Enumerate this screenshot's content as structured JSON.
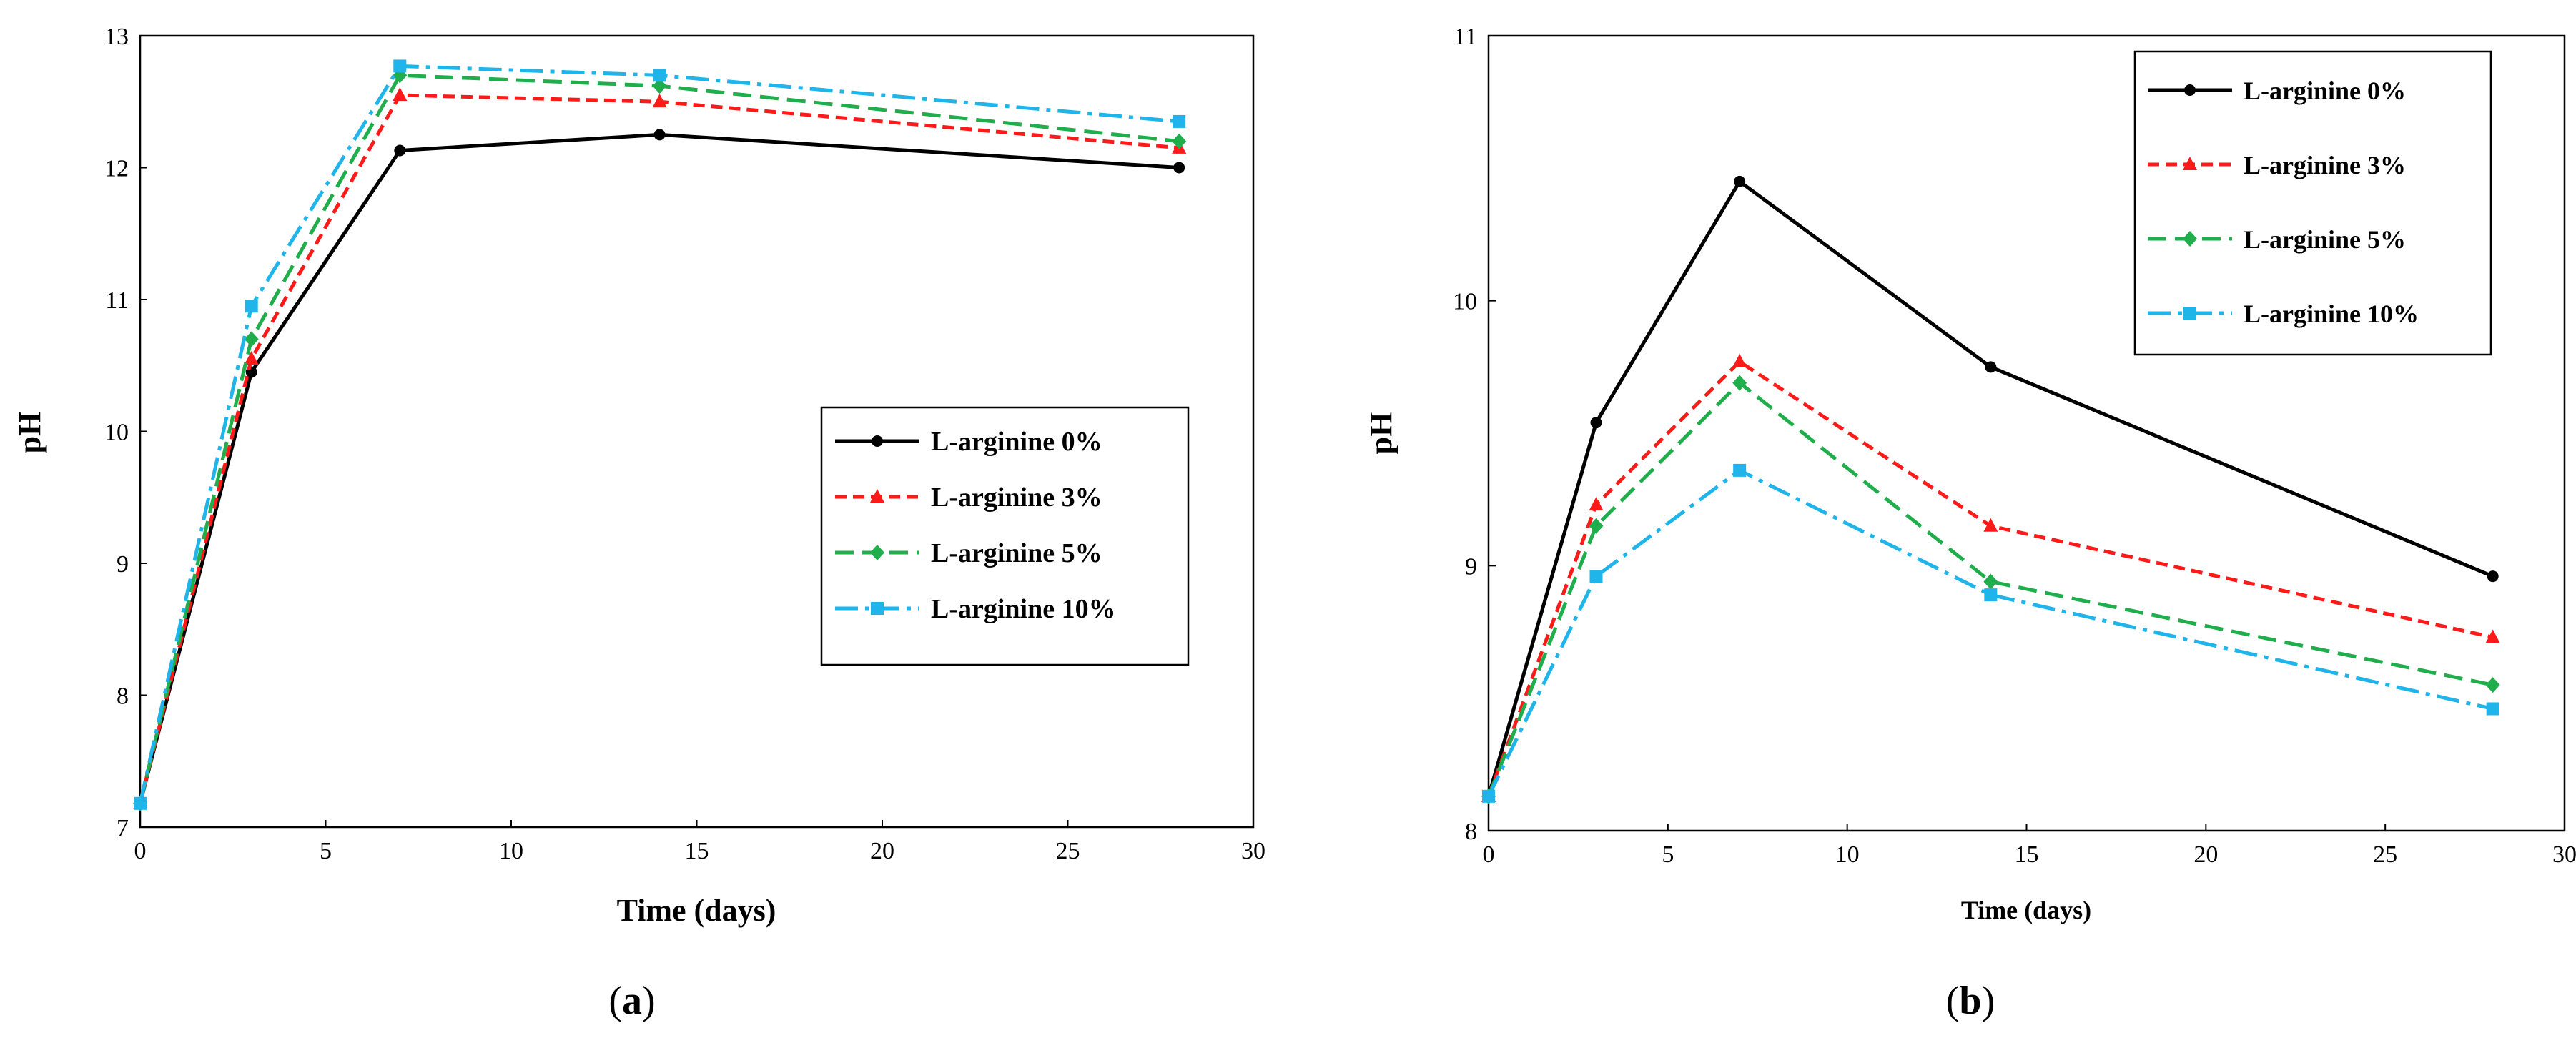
{
  "colors": {
    "axis": "#000000",
    "series": [
      "#000000",
      "#ff1a1a",
      "#1fae4b",
      "#1fb4ea"
    ]
  },
  "panel_labels": {
    "a": {
      "open": "(",
      "letter": "a",
      "close": ")"
    },
    "b": {
      "open": "(",
      "letter": "b",
      "close": ")"
    }
  },
  "chart_data": [
    {
      "id": "a",
      "type": "line",
      "xlabel": "Time (days)",
      "ylabel": "pH",
      "xlim": [
        0,
        30
      ],
      "ylim": [
        7,
        13
      ],
      "xticks": [
        "0",
        "5",
        "10",
        "15",
        "20",
        "25",
        "30"
      ],
      "yticks": [
        "7",
        "8",
        "9",
        "10",
        "11",
        "12",
        "13"
      ],
      "legend_position": "center-right",
      "series": [
        {
          "name": "L-arginine 0%",
          "marker": "circle",
          "dash": "solid",
          "x": [
            0,
            3,
            7,
            14,
            28
          ],
          "y": [
            7.18,
            10.45,
            12.13,
            12.25,
            12.0
          ]
        },
        {
          "name": "L-arginine 3%",
          "marker": "triangle",
          "dash": "dash",
          "x": [
            0,
            3,
            7,
            14,
            28
          ],
          "y": [
            7.18,
            10.55,
            12.55,
            12.5,
            12.15
          ]
        },
        {
          "name": "L-arginine 5%",
          "marker": "diamond",
          "dash": "longdash",
          "x": [
            0,
            3,
            7,
            14,
            28
          ],
          "y": [
            7.18,
            10.7,
            12.7,
            12.62,
            12.2
          ]
        },
        {
          "name": "L-arginine 10%",
          "marker": "square",
          "dash": "dashdot",
          "x": [
            0,
            3,
            7,
            14,
            28
          ],
          "y": [
            7.18,
            10.95,
            12.77,
            12.7,
            12.35
          ]
        }
      ]
    },
    {
      "id": "b",
      "type": "line",
      "xlabel": "Time (days)",
      "ylabel": "pH",
      "xlim": [
        0,
        30
      ],
      "ylim": [
        8,
        11
      ],
      "xticks": [
        "0",
        "5",
        "10",
        "15",
        "20",
        "25",
        "30"
      ],
      "yticks": [
        "8",
        "9",
        "10",
        "11"
      ],
      "legend_position": "top-right",
      "series": [
        {
          "name": "L-arginine 0%",
          "marker": "circle",
          "dash": "solid",
          "x": [
            0,
            3,
            7,
            14,
            28
          ],
          "y": [
            8.13,
            9.54,
            10.45,
            9.75,
            8.96
          ]
        },
        {
          "name": "L-arginine 3%",
          "marker": "triangle",
          "dash": "dash",
          "x": [
            0,
            3,
            7,
            14,
            28
          ],
          "y": [
            8.13,
            9.23,
            9.77,
            9.15,
            8.73
          ]
        },
        {
          "name": "L-arginine 5%",
          "marker": "diamond",
          "dash": "longdash",
          "x": [
            0,
            3,
            7,
            14,
            28
          ],
          "y": [
            8.13,
            9.15,
            9.69,
            8.94,
            8.55
          ]
        },
        {
          "name": "L-arginine 10%",
          "marker": "square",
          "dash": "dashdot",
          "x": [
            0,
            3,
            7,
            14,
            28
          ],
          "y": [
            8.13,
            8.96,
            9.36,
            8.89,
            8.46
          ]
        }
      ]
    }
  ]
}
